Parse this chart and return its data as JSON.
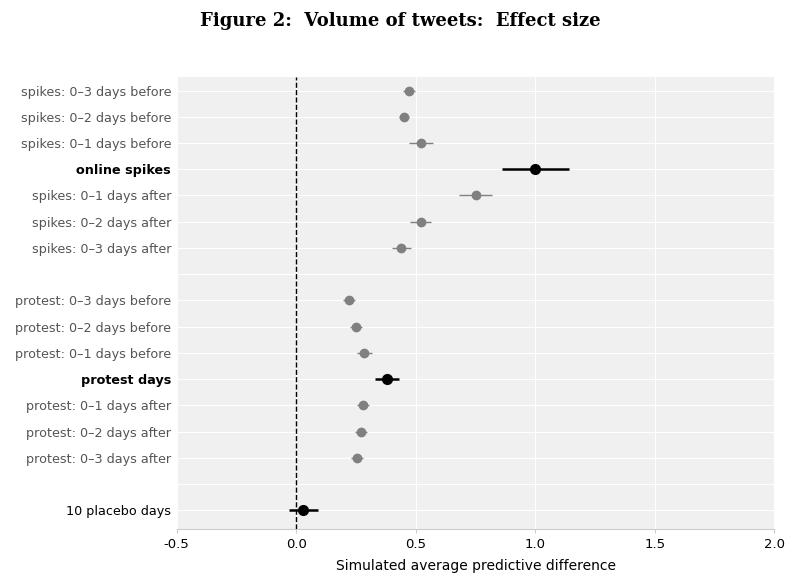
{
  "title": "Figure 2:  Volume of tweets:  Effect size",
  "xlabel": "Simulated average predictive difference",
  "labels": [
    "spikes: 0–3 days before",
    "spikes: 0–2 days before",
    "spikes: 0–1 days before",
    "online spikes",
    "spikes: 0–1 days after",
    "spikes: 0–2 days after",
    "spikes: 0–3 days after",
    "",
    "protest: 0–3 days before",
    "protest: 0–2 days before",
    "protest: 0–1 days before",
    "protest days",
    "protest: 0–1 days after",
    "protest: 0–2 days after",
    "protest: 0–3 days after",
    "",
    "10 placebo days"
  ],
  "values": [
    0.47,
    0.45,
    0.52,
    1.0,
    0.75,
    0.52,
    0.44,
    null,
    0.22,
    0.25,
    0.285,
    0.38,
    0.28,
    0.27,
    0.255,
    null,
    0.03
  ],
  "err_low": [
    0.025,
    0.02,
    0.05,
    0.14,
    0.07,
    0.045,
    0.04,
    null,
    0.025,
    0.025,
    0.03,
    0.05,
    0.025,
    0.025,
    0.025,
    null,
    0.06
  ],
  "err_high": [
    0.025,
    0.02,
    0.05,
    0.14,
    0.07,
    0.045,
    0.04,
    null,
    0.025,
    0.025,
    0.03,
    0.05,
    0.025,
    0.025,
    0.025,
    null,
    0.06
  ],
  "bold_rows": [
    3,
    11
  ],
  "black_special_rows": [
    16
  ],
  "xlim": [
    -0.5,
    2.0
  ],
  "xticks": [
    -0.5,
    0.0,
    0.5,
    1.0,
    1.5,
    2.0
  ],
  "gray_color": "#808080",
  "black_color": "#000000",
  "fig_bg": "#ffffff",
  "plot_bg": "#f0f0f0",
  "grid_color": "#ffffff",
  "border_color": "#cccccc",
  "title_fontsize": 13,
  "label_fontsize": 9.2,
  "axis_fontsize": 9.5,
  "marker_size_bold": 7,
  "marker_size_gray": 6,
  "lw_bold": 1.8,
  "lw_gray": 1.0
}
